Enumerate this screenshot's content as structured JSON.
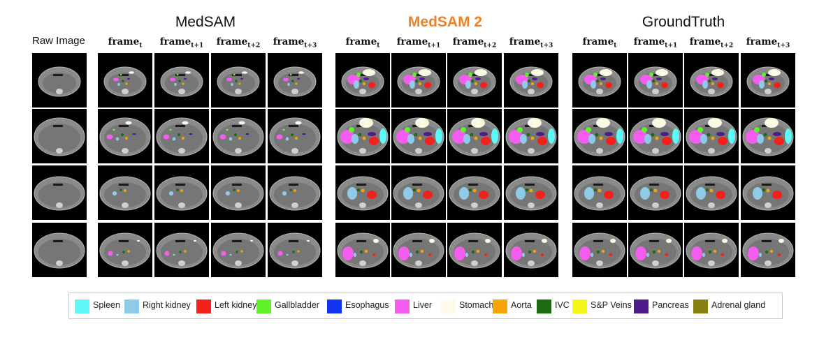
{
  "groups": [
    {
      "title": "MedSAM"
    },
    {
      "title": "MedSAM 2"
    },
    {
      "title": "GroundTruth"
    }
  ],
  "raw_column_title": "Raw Image",
  "frame_headers": [
    {
      "base": "frame",
      "sub": "t"
    },
    {
      "base": "frame",
      "sub": "t+1"
    },
    {
      "base": "frame",
      "sub": "t+2"
    },
    {
      "base": "frame",
      "sub": "t+3"
    }
  ],
  "colors": {
    "title_accent": "#ee8126",
    "ct_background": "#000000"
  },
  "legend": [
    {
      "label": "Spleen",
      "color": "#5ef8f8"
    },
    {
      "label": "Right kidney",
      "color": "#8ecbe8"
    },
    {
      "label": "Left kidney",
      "color": "#f2221a"
    },
    {
      "label": "Gallbladder",
      "color": "#5ef22a"
    },
    {
      "label": "Esophagus",
      "color": "#1236f0"
    },
    {
      "label": "Liver",
      "color": "#f55cf0"
    },
    {
      "label": "Stomach",
      "color": "#fdfbe6"
    },
    {
      "label": "Aorta",
      "color": "#f7a30a"
    },
    {
      "label": "IVC",
      "color": "#1d6a12"
    },
    {
      "label": "S&P Veins",
      "color": "#f8f51a"
    },
    {
      "label": "Pancreas",
      "color": "#4c1a8a"
    },
    {
      "label": "Adrenal gland",
      "color": "#868011"
    }
  ]
}
